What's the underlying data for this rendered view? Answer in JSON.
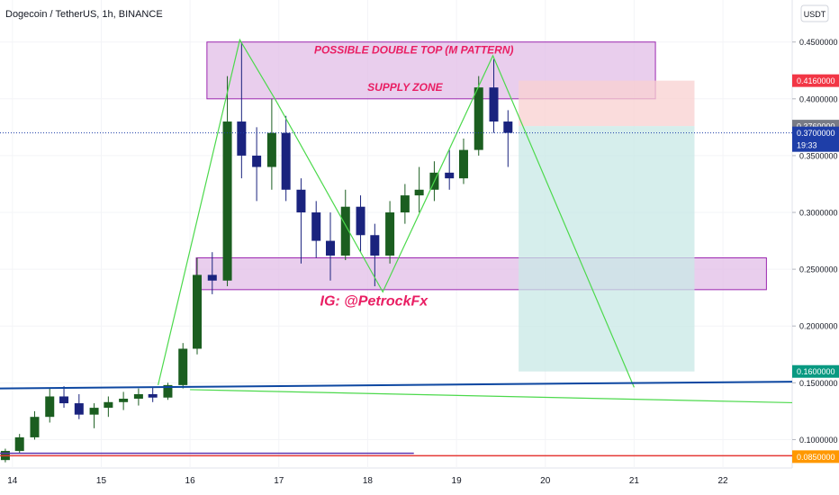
{
  "chart_data": {
    "type": "candlestick",
    "title": "Dogecoin / TetherUS, 1h, BINANCE",
    "currency_button": "USDT",
    "xlim": [
      13.86,
      22.78
    ],
    "xticks": [
      14,
      15,
      16,
      17,
      18,
      19,
      20,
      21,
      22
    ],
    "ylim": [
      0.075,
      0.487
    ],
    "yticks": [
      {
        "value": 0.45,
        "label": "0.4500000"
      },
      {
        "value": 0.4,
        "label": "0.4000000"
      },
      {
        "value": 0.35,
        "label": "0.3500000"
      },
      {
        "value": 0.3,
        "label": "0.3000000"
      },
      {
        "value": 0.25,
        "label": "0.2500000"
      },
      {
        "value": 0.2,
        "label": "0.2000000"
      },
      {
        "value": 0.15,
        "label": "0.1500000"
      },
      {
        "value": 0.1,
        "label": "0.1000000"
      }
    ],
    "up_color": "#1b5e20",
    "down_color": "#1a237e",
    "x": [
      13.92,
      14.08,
      14.25,
      14.42,
      14.58,
      14.75,
      14.92,
      15.08,
      15.25,
      15.42,
      15.58,
      15.75,
      15.92,
      16.08,
      16.25,
      16.42,
      16.58,
      16.75,
      16.92,
      17.08,
      17.25,
      17.42,
      17.58,
      17.75,
      17.92,
      18.08,
      18.25,
      18.42,
      18.58,
      18.75,
      18.92,
      19.08,
      19.25,
      19.42,
      19.58
    ],
    "open": [
      0.082,
      0.09,
      0.102,
      0.12,
      0.138,
      0.132,
      0.122,
      0.128,
      0.133,
      0.136,
      0.14,
      0.137,
      0.148,
      0.18,
      0.245,
      0.24,
      0.38,
      0.35,
      0.34,
      0.37,
      0.32,
      0.3,
      0.275,
      0.262,
      0.305,
      0.28,
      0.262,
      0.3,
      0.315,
      0.32,
      0.335,
      0.33,
      0.355,
      0.41,
      0.38
    ],
    "high": [
      0.092,
      0.105,
      0.125,
      0.145,
      0.147,
      0.14,
      0.132,
      0.138,
      0.142,
      0.145,
      0.146,
      0.15,
      0.185,
      0.26,
      0.265,
      0.42,
      0.45,
      0.375,
      0.4,
      0.385,
      0.33,
      0.31,
      0.3,
      0.32,
      0.315,
      0.29,
      0.31,
      0.325,
      0.34,
      0.345,
      0.355,
      0.365,
      0.42,
      0.435,
      0.39
    ],
    "low": [
      0.08,
      0.088,
      0.1,
      0.115,
      0.128,
      0.118,
      0.11,
      0.12,
      0.126,
      0.13,
      0.133,
      0.135,
      0.145,
      0.175,
      0.228,
      0.235,
      0.33,
      0.31,
      0.32,
      0.31,
      0.255,
      0.26,
      0.24,
      0.258,
      0.265,
      0.235,
      0.255,
      0.29,
      0.3,
      0.31,
      0.32,
      0.325,
      0.35,
      0.37,
      0.34
    ],
    "close": [
      0.09,
      0.102,
      0.12,
      0.138,
      0.132,
      0.122,
      0.128,
      0.133,
      0.136,
      0.14,
      0.137,
      0.148,
      0.18,
      0.245,
      0.24,
      0.38,
      0.35,
      0.34,
      0.37,
      0.32,
      0.3,
      0.275,
      0.262,
      0.305,
      0.28,
      0.262,
      0.3,
      0.315,
      0.32,
      0.335,
      0.33,
      0.355,
      0.41,
      0.38,
      0.37
    ],
    "zones": [
      {
        "x": [
          16.19,
          21.24
        ],
        "y": [
          0.4,
          0.45
        ],
        "fill": "#e1bee7",
        "stroke": "#9c27b0"
      },
      {
        "x": [
          16.07,
          22.49
        ],
        "y": [
          0.232,
          0.26
        ],
        "fill": "#e1bee7",
        "stroke": "#9c27b0"
      },
      {
        "x": [
          19.7,
          21.68
        ],
        "y": [
          0.376,
          0.416
        ],
        "fill": "#f8d0d0",
        "stroke": "none"
      },
      {
        "x": [
          19.7,
          21.68
        ],
        "y": [
          0.16,
          0.376
        ],
        "fill": "#c8e8e6",
        "stroke": "none"
      }
    ],
    "lines": [
      {
        "x": [
          15.64,
          16.56,
          16.97,
          18.17,
          19.41,
          21.0
        ],
        "y": [
          0.148,
          0.452,
          0.398,
          0.23,
          0.438,
          0.146
        ],
        "color": "#4cd94c",
        "width": 1.2
      },
      {
        "x": [
          13.86,
          22.78
        ],
        "y": [
          0.145,
          0.151
        ],
        "color": "#0d47a1",
        "width": 2
      },
      {
        "x": [
          16.0,
          22.78
        ],
        "y": [
          0.144,
          0.1325
        ],
        "color": "#4cd94c",
        "width": 1.2
      },
      {
        "x": [
          13.86,
          22.78
        ],
        "y": [
          0.0858,
          0.0858
        ],
        "color": "#e53935",
        "width": 1.5
      },
      {
        "x": [
          13.86,
          18.52
        ],
        "y": [
          0.088,
          0.088
        ],
        "color": "#5e35b1",
        "width": 1.5
      }
    ],
    "current_price": 0.37,
    "countdown": "19:33",
    "price_labels": [
      {
        "value": 0.416,
        "label": "0.4160000",
        "color": "#f23645"
      },
      {
        "value": 0.376,
        "label": "0.3760000",
        "color": "#787b86"
      },
      {
        "value": 0.37,
        "label": "0.3700000",
        "color": "#1e3ea8"
      },
      {
        "value": 0.16,
        "label": "0.1600000",
        "color": "#089981"
      },
      {
        "value": 0.085,
        "label": "0.0850000",
        "color": "#ff9800"
      }
    ],
    "annotations": [
      {
        "text": "POSSIBLE DOUBLE TOP (M PATTERN)",
        "x": 18.52,
        "y": 0.44,
        "color": "#e91e63",
        "size": 12
      },
      {
        "text": "SUPPLY ZONE",
        "x": 18.42,
        "y": 0.407,
        "color": "#e91e63",
        "size": 12
      },
      {
        "text": "IG: @PetrockFx",
        "x": 18.07,
        "y": 0.218,
        "color": "#e91e63",
        "size": 16
      }
    ]
  }
}
